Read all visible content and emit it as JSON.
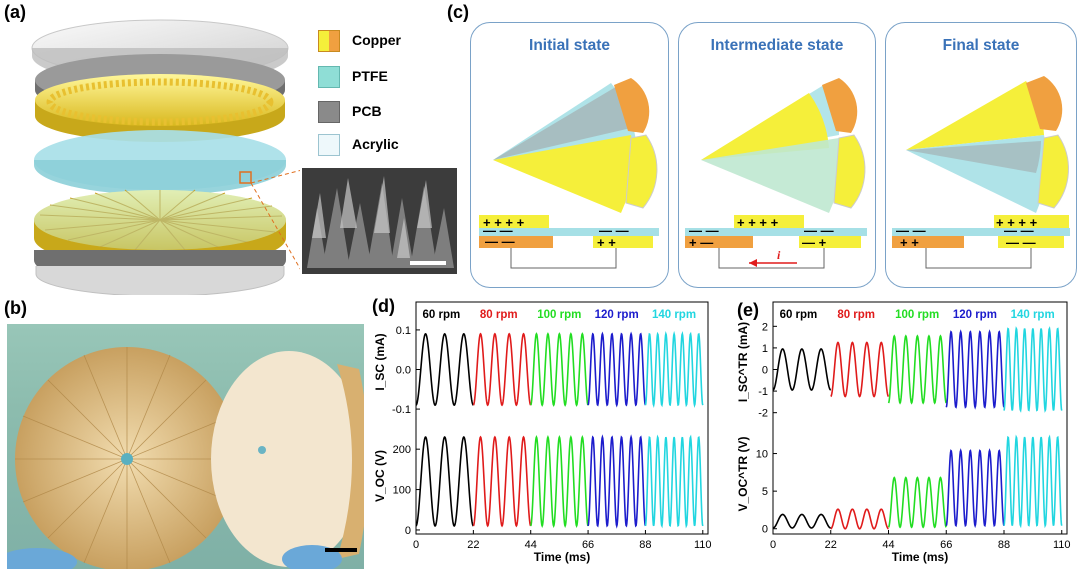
{
  "panels": {
    "a": "(a)",
    "b": "(b)",
    "c": "(c)",
    "d": "(d)",
    "e": "(e)"
  },
  "legend": [
    {
      "label": "Copper",
      "icon": "copper-cube-icon",
      "color": "#f2a03a"
    },
    {
      "label": "PTFE",
      "icon": "ptfe-cube-icon",
      "color": "#8fded6"
    },
    {
      "label": "PCB",
      "icon": "pcb-cube-icon",
      "color": "#8a8a8a"
    },
    {
      "label": "Acrylic",
      "icon": "acrylic-cube-icon",
      "color": "#dff2f8"
    }
  ],
  "states": {
    "initial": "Initial state",
    "intermediate": "Intermediate state",
    "final": "Final state",
    "current_symbol": "i"
  },
  "colors": {
    "accent": "#3a72b8",
    "yellow": "#f5ef3a",
    "copper": "#f0a040",
    "ptfe": "#a6e0e6",
    "s60": "#000000",
    "s80": "#e01b1b",
    "s100": "#22dd22",
    "s120": "#1c1ccc",
    "s140": "#22d6e0"
  },
  "chart_data": [
    {
      "type": "line",
      "panel": "d-top",
      "ylabel": "I_SC (mA)",
      "ylim": [
        -0.12,
        0.12
      ],
      "yticks": [
        "0.1",
        "0.0",
        "-0.1"
      ],
      "xlim": [
        0,
        112
      ],
      "segments": [
        {
          "name": "60 rpm",
          "x": [
            0,
            22
          ],
          "amplitude": 0.09,
          "offset": 0,
          "cycles": 3
        },
        {
          "name": "80 rpm",
          "x": [
            22,
            44
          ],
          "amplitude": 0.09,
          "offset": 0,
          "cycles": 4
        },
        {
          "name": "100 rpm",
          "x": [
            44,
            66
          ],
          "amplitude": 0.09,
          "offset": 0,
          "cycles": 5
        },
        {
          "name": "120 rpm",
          "x": [
            66,
            88
          ],
          "amplitude": 0.09,
          "offset": 0,
          "cycles": 6
        },
        {
          "name": "140 rpm",
          "x": [
            88,
            110
          ],
          "amplitude": 0.09,
          "offset": 0,
          "cycles": 7
        }
      ]
    },
    {
      "type": "line",
      "panel": "d-bottom",
      "ylabel": "V_OC (V)",
      "ylim": [
        -10,
        245
      ],
      "yticks": [
        "200",
        "100",
        "0"
      ],
      "xlim": [
        0,
        112
      ],
      "xticks": [
        "0",
        "22",
        "44",
        "66",
        "88",
        "110"
      ],
      "xlabel": "Time (ms)",
      "segments": [
        {
          "name": "60 rpm",
          "x": [
            0,
            22
          ],
          "amplitude": 110,
          "offset": 120,
          "cycles": 3
        },
        {
          "name": "80 rpm",
          "x": [
            22,
            44
          ],
          "amplitude": 110,
          "offset": 120,
          "cycles": 4
        },
        {
          "name": "100 rpm",
          "x": [
            44,
            66
          ],
          "amplitude": 110,
          "offset": 120,
          "cycles": 5
        },
        {
          "name": "120 rpm",
          "x": [
            66,
            88
          ],
          "amplitude": 110,
          "offset": 120,
          "cycles": 6
        },
        {
          "name": "140 rpm",
          "x": [
            88,
            110
          ],
          "amplitude": 110,
          "offset": 120,
          "cycles": 7
        }
      ]
    },
    {
      "type": "line",
      "panel": "e-top",
      "ylabel": "I_SC^TR (mA)",
      "ylim": [
        -2.2,
        2.2
      ],
      "yticks": [
        "2",
        "1",
        "0",
        "-1",
        "-2"
      ],
      "xlim": [
        0,
        112
      ],
      "segments": [
        {
          "name": "60 rpm",
          "x": [
            0,
            22
          ],
          "amplitude": 0.95,
          "offset": 0,
          "cycles": 3
        },
        {
          "name": "80 rpm",
          "x": [
            22,
            44
          ],
          "amplitude": 1.25,
          "offset": 0,
          "cycles": 4
        },
        {
          "name": "100 rpm",
          "x": [
            44,
            66
          ],
          "amplitude": 1.55,
          "offset": 0,
          "cycles": 5
        },
        {
          "name": "120 rpm",
          "x": [
            66,
            88
          ],
          "amplitude": 1.75,
          "offset": 0,
          "cycles": 6
        },
        {
          "name": "140 rpm",
          "x": [
            88,
            110
          ],
          "amplitude": 1.9,
          "offset": 0,
          "cycles": 7
        }
      ]
    },
    {
      "type": "line",
      "panel": "e-bottom",
      "ylabel": "V_OC^TR (V)",
      "ylim": [
        -0.7,
        13
      ],
      "yticks": [
        "10",
        "5",
        "0"
      ],
      "xlim": [
        0,
        112
      ],
      "xticks": [
        "0",
        "22",
        "44",
        "66",
        "88",
        "110"
      ],
      "xlabel": "Time (ms)",
      "segments": [
        {
          "name": "60 rpm",
          "x": [
            0,
            22
          ],
          "amplitude": 0.9,
          "offset": 1.0,
          "cycles": 3
        },
        {
          "name": "80 rpm",
          "x": [
            22,
            44
          ],
          "amplitude": 1.3,
          "offset": 1.3,
          "cycles": 4
        },
        {
          "name": "100 rpm",
          "x": [
            44,
            66
          ],
          "amplitude": 3.3,
          "offset": 3.5,
          "cycles": 5
        },
        {
          "name": "120 rpm",
          "x": [
            66,
            88
          ],
          "amplitude": 5.0,
          "offset": 5.4,
          "cycles": 6
        },
        {
          "name": "140 rpm",
          "x": [
            88,
            110
          ],
          "amplitude": 5.9,
          "offset": 6.3,
          "cycles": 7
        }
      ]
    }
  ],
  "speed_labels": [
    "60 rpm",
    "80 rpm",
    "100 rpm",
    "120 rpm",
    "140 rpm"
  ]
}
